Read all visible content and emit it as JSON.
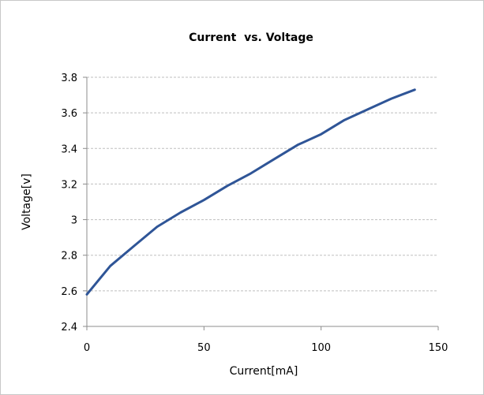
{
  "chart_data": {
    "type": "line",
    "title": "Current  vs. Voltage",
    "xlabel": "Current[mA]",
    "ylabel": "Voltage[v]",
    "xlim": [
      0,
      150
    ],
    "ylim": [
      2.4,
      3.8
    ],
    "xticks": [
      0,
      50,
      100,
      150
    ],
    "yticks": [
      2.4,
      2.6,
      2.8,
      3,
      3.2,
      3.4,
      3.6,
      3.8
    ],
    "xtick_labels": [
      "0",
      "50",
      "100",
      "150"
    ],
    "ytick_labels": [
      "2.4",
      "2.6",
      "2.8",
      "3",
      "3.2",
      "3.4",
      "3.6",
      "3.8"
    ],
    "grid": "horizontal dashed",
    "legend": "none",
    "series": [
      {
        "color": "#2f5597",
        "x": [
          0,
          10,
          20,
          30,
          40,
          50,
          60,
          70,
          80,
          90,
          100,
          110,
          120,
          130,
          140
        ],
        "y": [
          2.58,
          2.74,
          2.85,
          2.96,
          3.04,
          3.11,
          3.19,
          3.26,
          3.34,
          3.42,
          3.48,
          3.56,
          3.62,
          3.68,
          3.73
        ]
      }
    ]
  }
}
